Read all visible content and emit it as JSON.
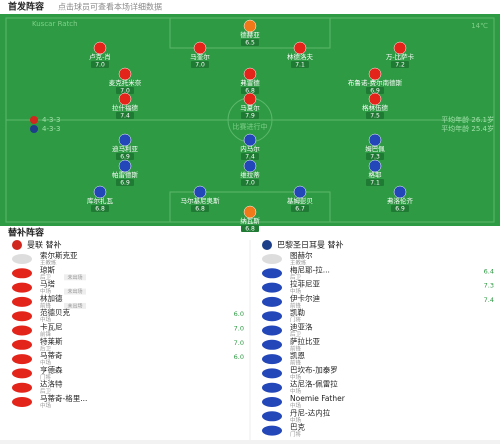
{
  "header": {
    "title": "首发阵容",
    "subtitle": "点击球员可查看本场详细数据"
  },
  "field": {
    "referee": "Kuscar Ratch",
    "weather": "14℃",
    "center": "比赛进行中",
    "home": {
      "formation": "4-3-3",
      "avg_age": "平均年龄 26.1岁",
      "rows": [
        [
          {
            "name": "德赫亚",
            "rating": "6.5"
          }
        ],
        [
          {
            "name": "卢克-肖",
            "rating": "7.0"
          },
          {
            "name": "马奎尔",
            "rating": "7.0"
          },
          {
            "name": "林德洛夫",
            "rating": "7.1"
          },
          {
            "name": "万-比萨卡",
            "rating": "7.2"
          }
        ],
        [
          {
            "name": "麦克托米奈",
            "rating": "7.0"
          },
          {
            "name": "弗雷德",
            "rating": "6.8"
          },
          {
            "name": "布鲁诺-费尔南德斯",
            "rating": "6.9"
          }
        ],
        [
          {
            "name": "拉什福德",
            "rating": "7.4"
          },
          {
            "name": "马夏尔",
            "rating": "7.9"
          },
          {
            "name": "格林伍德",
            "rating": "7.5"
          }
        ]
      ]
    },
    "away": {
      "formation": "4-3-3",
      "avg_age": "平均年龄 25.4岁",
      "rows": [
        [
          {
            "name": "迪马利亚",
            "rating": "6.9"
          },
          {
            "name": "内马尔",
            "rating": "7.4"
          },
          {
            "name": "姆巴佩",
            "rating": "7.3"
          }
        ],
        [
          {
            "name": "帕雷德斯",
            "rating": "6.9"
          },
          {
            "name": "维拉蒂",
            "rating": "7.0"
          },
          {
            "name": "格耶",
            "rating": "7.1"
          }
        ],
        [
          {
            "name": "库尔扎瓦",
            "rating": "6.8"
          },
          {
            "name": "马尔基尼奥斯",
            "rating": "6.8"
          },
          {
            "name": "基姆彭贝",
            "rating": "6.7"
          },
          {
            "name": "弗洛伦齐",
            "rating": "6.9"
          }
        ],
        [
          {
            "name": "纳瓦斯",
            "rating": "6.8"
          }
        ]
      ]
    }
  },
  "bench": {
    "title": "替补阵容",
    "home": {
      "team": "曼联 替补",
      "rows": [
        {
          "name": "索尔斯克亚",
          "pos": "主教练",
          "coach": true
        },
        {
          "name": "琼斯",
          "pos": "后卫",
          "tag": "未出场"
        },
        {
          "name": "马塔",
          "pos": "中场",
          "tag": "未出场"
        },
        {
          "name": "林加德",
          "pos": "前锋",
          "tag": "未出场"
        },
        {
          "name": "范德贝克",
          "pos": "中场",
          "rating": "6.0"
        },
        {
          "name": "卡瓦尼",
          "pos": "前锋",
          "rating": "7.0"
        },
        {
          "name": "特莱斯",
          "pos": "后卫",
          "rating": "7.0"
        },
        {
          "name": "马蒂奇",
          "pos": "中场",
          "rating": "6.0"
        },
        {
          "name": "亨德森",
          "pos": "门将"
        },
        {
          "name": "达洛特",
          "pos": "后卫"
        },
        {
          "name": "马蒂奇-格里...",
          "pos": "中场"
        }
      ]
    },
    "away": {
      "team": "巴黎圣日耳曼 替补",
      "rows": [
        {
          "name": "图赫尔",
          "pos": "主教练",
          "coach": true
        },
        {
          "name": "梅尼耶-拉...",
          "pos": "后卫",
          "rating": "6.4"
        },
        {
          "name": "拉菲尼亚",
          "pos": "中场",
          "rating": "7.3"
        },
        {
          "name": "伊卡尔迪",
          "pos": "前锋",
          "rating": "7.4"
        },
        {
          "name": "凯勒",
          "pos": "门将"
        },
        {
          "name": "迪亚洛",
          "pos": "后卫"
        },
        {
          "name": "萨拉比亚",
          "pos": "前锋"
        },
        {
          "name": "凯恩",
          "pos": "前锋"
        },
        {
          "name": "巴坎布-加泰罗",
          "pos": "中场"
        },
        {
          "name": "达尼洛-佩雷拉",
          "pos": "中场"
        },
        {
          "name": "Noemie Father",
          "pos": "中场"
        },
        {
          "name": "丹尼-达内拉",
          "pos": "中场"
        },
        {
          "name": "巴克",
          "pos": "门将"
        }
      ]
    }
  }
}
